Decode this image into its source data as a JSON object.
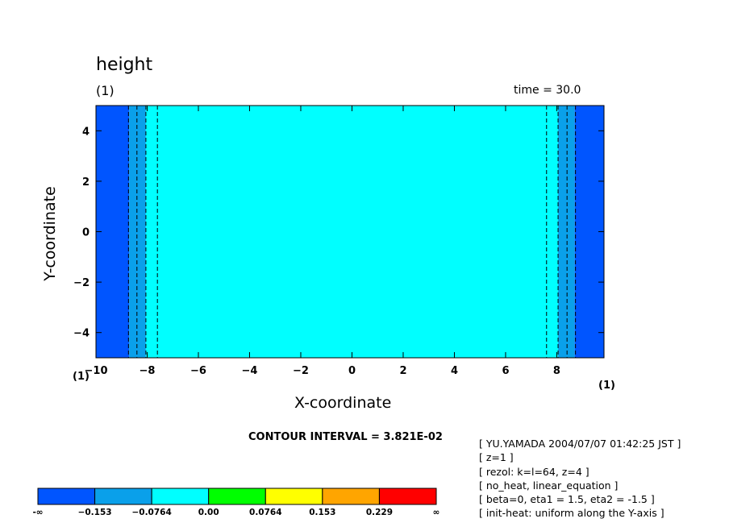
{
  "header": {
    "title": "height",
    "subtitle": "(1)",
    "time_label": "time = 30.0"
  },
  "labels": {
    "x_corner": "(1)",
    "x_right": "(1)",
    "contour_interval": "CONTOUR INTERVAL = 3.821E-02"
  },
  "info": [
    "[ YU.YAMADA 2004/07/07 01:42:25 JST ]",
    "[ z=1 ]",
    "[ rezol: k=l=64, z=4 ]",
    "[ no_heat, linear_equation ]",
    "[ beta=0, eta1 = 1.5, eta2 = -1.5 ]",
    "[ init-heat: uniform along the Y-axis ]"
  ],
  "chart_data": {
    "type": "heatmap",
    "title": "height",
    "xlabel": "X-coordinate",
    "ylabel": "Y-coordinate",
    "xlim": [
      -10,
      9.844
    ],
    "ylim": [
      -5,
      5
    ],
    "xticks": [
      -10,
      -8,
      -6,
      -4,
      -2,
      0,
      2,
      4,
      6,
      8
    ],
    "yticks": [
      -4,
      -2,
      0,
      2,
      4
    ],
    "xtick_labels": [
      "−10",
      "−8",
      "−6",
      "−4",
      "−2",
      "0",
      "2",
      "4",
      "6",
      "8"
    ],
    "ytick_labels": [
      "−4",
      "−2",
      "0",
      "2",
      "4"
    ],
    "bands": [
      {
        "x0": -10,
        "x1": -8.7,
        "level": 0
      },
      {
        "x0": -8.7,
        "x1": -8.05,
        "level": 1
      },
      {
        "x0": -8.05,
        "x1": 8.05,
        "level": 2
      },
      {
        "x0": 8.05,
        "x1": 8.7,
        "level": 1
      },
      {
        "x0": 8.7,
        "x1": 9.844,
        "level": 0
      }
    ],
    "contours_x": [
      -8.73,
      -8.4,
      -8.05,
      -7.6,
      7.6,
      8.05,
      8.4,
      8.73
    ],
    "colorbar": {
      "colors": [
        "#0055ff",
        "#0aa0ea",
        "#00ffff",
        "#00ff00",
        "#ffff00",
        "#ffa500",
        "#ff0000"
      ],
      "labels": [
        "-∞",
        "−0.153",
        "−0.0764",
        "0.00",
        "0.0764",
        "0.153",
        "0.229",
        "∞"
      ]
    }
  }
}
